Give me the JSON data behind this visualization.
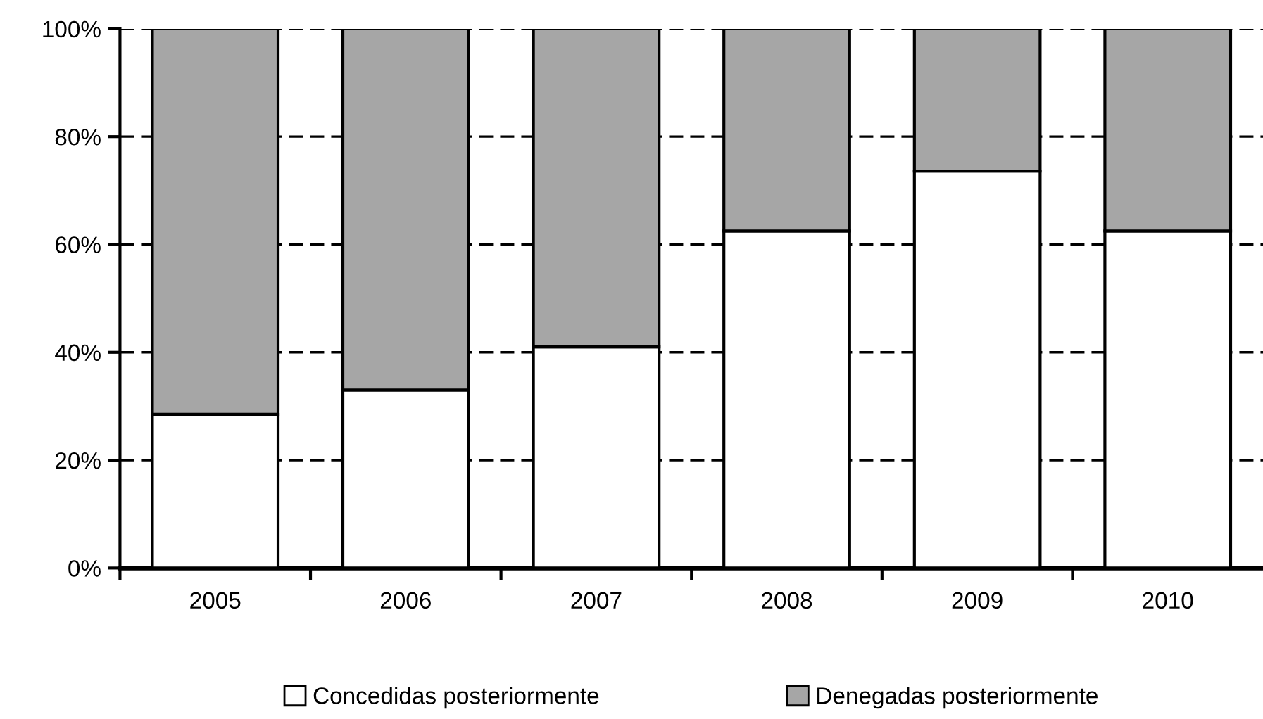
{
  "chart_data": {
    "type": "bar",
    "stacked": true,
    "categories": [
      "2005",
      "2006",
      "2007",
      "2008",
      "2009",
      "2010"
    ],
    "series": [
      {
        "name": "Concedidas posteriormente",
        "color": "#ffffff",
        "values": [
          28.5,
          33,
          41,
          62.5,
          73.6,
          62.5
        ]
      },
      {
        "name": "Denegadas posteriormente",
        "color": "#a6a6a6",
        "values": [
          71.5,
          67,
          59,
          37.5,
          26.4,
          37.5
        ]
      }
    ],
    "ylim": [
      0,
      100
    ],
    "yticks": [
      {
        "value": 0,
        "label": "0%"
      },
      {
        "value": 20,
        "label": "20%"
      },
      {
        "value": 40,
        "label": "40%"
      },
      {
        "value": 60,
        "label": "60%"
      },
      {
        "value": 80,
        "label": "80%"
      },
      {
        "value": 100,
        "label": "100%"
      }
    ],
    "grid": "y",
    "legend": "bottom"
  }
}
